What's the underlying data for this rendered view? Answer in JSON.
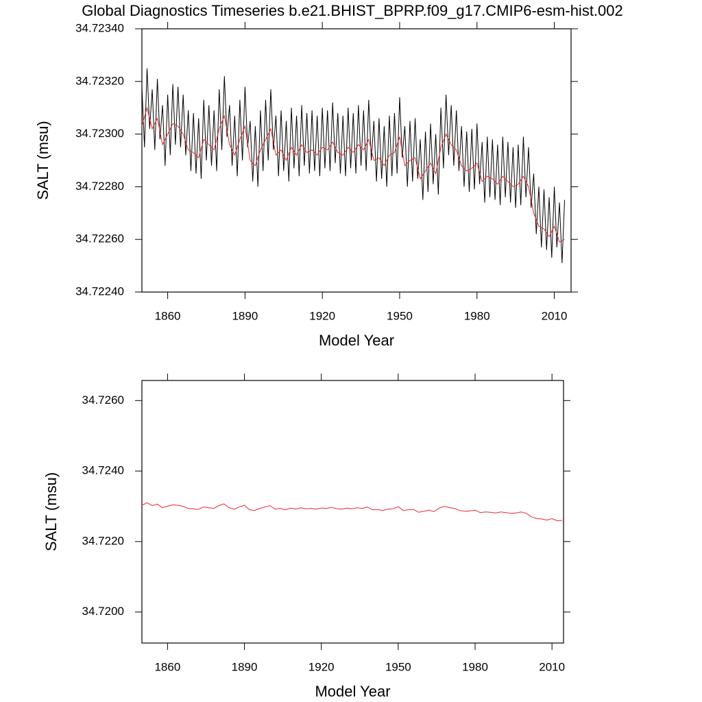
{
  "chart_data": [
    {
      "type": "line",
      "title": "Global Diagnostics Timeseries b.e21.BHIST_BPRP.f09_g17.CMIP6-esm-hist.002",
      "ylabel": "SALT (msu)",
      "xlabel": "Model Year",
      "xlim": [
        1850,
        2016.5
      ],
      "xticks": [
        1860,
        1890,
        1920,
        1950,
        1980,
        2010
      ],
      "ylim": [
        34.7224,
        34.7234
      ],
      "yticks": [
        {
          "value": 34.7224,
          "label": "34.72240"
        },
        {
          "value": 34.7226,
          "label": "34.72260"
        },
        {
          "value": 34.7228,
          "label": "34.72280"
        },
        {
          "value": 34.723,
          "label": "34.72300"
        },
        {
          "value": 34.7232,
          "label": "34.72320"
        },
        {
          "value": 34.7234,
          "label": "34.72340"
        }
      ],
      "series": [
        {
          "color": "#000000",
          "x": [
            1850,
            1851,
            1852,
            1853,
            1854,
            1855,
            1856,
            1857,
            1858,
            1859,
            1860,
            1861,
            1862,
            1863,
            1864,
            1865,
            1866,
            1867,
            1868,
            1869,
            1870,
            1871,
            1872,
            1873,
            1874,
            1875,
            1876,
            1877,
            1878,
            1879,
            1880,
            1881,
            1882,
            1883,
            1884,
            1885,
            1886,
            1887,
            1888,
            1889,
            1890,
            1891,
            1892,
            1893,
            1894,
            1895,
            1896,
            1897,
            1898,
            1899,
            1900,
            1901,
            1902,
            1903,
            1904,
            1905,
            1906,
            1907,
            1908,
            1909,
            1910,
            1911,
            1912,
            1913,
            1914,
            1915,
            1916,
            1917,
            1918,
            1919,
            1920,
            1921,
            1922,
            1923,
            1924,
            1925,
            1926,
            1927,
            1928,
            1929,
            1930,
            1931,
            1932,
            1933,
            1934,
            1935,
            1936,
            1937,
            1938,
            1939,
            1940,
            1941,
            1942,
            1943,
            1944,
            1945,
            1946,
            1947,
            1948,
            1949,
            1950,
            1951,
            1952,
            1953,
            1954,
            1955,
            1956,
            1957,
            1958,
            1959,
            1960,
            1961,
            1962,
            1963,
            1964,
            1965,
            1966,
            1967,
            1968,
            1969,
            1970,
            1971,
            1972,
            1973,
            1974,
            1975,
            1976,
            1977,
            1978,
            1979,
            1980,
            1981,
            1982,
            1983,
            1984,
            1985,
            1986,
            1987,
            1988,
            1989,
            1990,
            1991,
            1992,
            1993,
            1994,
            1995,
            1996,
            1997,
            1998,
            1999,
            2000,
            2001,
            2002,
            2003,
            2004,
            2005,
            2006,
            2007,
            2008,
            2009,
            2010,
            2011,
            2012,
            2013,
            2014
          ],
          "values": [
            34.72318,
            34.72295,
            34.72325,
            34.72302,
            34.72317,
            34.72294,
            34.72321,
            34.72298,
            34.72311,
            34.72288,
            34.72315,
            34.72292,
            34.72319,
            34.72296,
            34.72318,
            34.72295,
            34.72315,
            34.72292,
            34.72309,
            34.72286,
            34.72308,
            34.72285,
            34.72306,
            34.72283,
            34.72313,
            34.7229,
            34.72311,
            34.72288,
            34.72309,
            34.72286,
            34.72317,
            34.72294,
            34.72322,
            34.72299,
            34.72311,
            34.72288,
            34.72307,
            34.72284,
            34.72313,
            34.7229,
            34.72318,
            34.72295,
            34.72305,
            34.72282,
            34.72303,
            34.7228,
            34.72309,
            34.72286,
            34.72313,
            34.7229,
            34.72317,
            34.72294,
            34.72307,
            34.72284,
            34.72309,
            34.72286,
            34.72305,
            34.72282,
            34.7231,
            34.72287,
            34.72307,
            34.72284,
            34.72311,
            34.72288,
            34.72308,
            34.72285,
            34.72309,
            34.72286,
            34.72307,
            34.72284,
            34.7231,
            34.72287,
            34.72309,
            34.72286,
            34.72312,
            34.72289,
            34.72308,
            34.72285,
            34.72307,
            34.72284,
            34.7231,
            34.72287,
            34.72308,
            34.72285,
            34.72311,
            34.72288,
            34.72309,
            34.72286,
            34.72313,
            34.7229,
            34.72305,
            34.72282,
            34.72306,
            34.72283,
            34.72303,
            34.7228,
            34.72307,
            34.72284,
            34.72308,
            34.72285,
            34.72314,
            34.72291,
            34.72303,
            34.7228,
            34.72305,
            34.72282,
            34.72306,
            34.72283,
            34.72298,
            34.72275,
            34.72301,
            34.72278,
            34.72304,
            34.72281,
            34.723,
            34.72277,
            34.7231,
            34.72287,
            34.72315,
            34.72292,
            34.72311,
            34.72288,
            34.72309,
            34.72286,
            34.72303,
            34.7228,
            34.72301,
            34.72278,
            34.72302,
            34.72279,
            34.72304,
            34.72281,
            34.72297,
            34.72274,
            34.72299,
            34.72276,
            34.72298,
            34.72275,
            34.72296,
            34.72273,
            34.72299,
            34.72276,
            34.72297,
            34.72274,
            34.72295,
            34.72272,
            34.72296,
            34.72273,
            34.72299,
            34.72276,
            34.72295,
            34.72272,
            34.72285,
            34.72262,
            34.7228,
            34.72257,
            34.72279,
            34.72256,
            34.72276,
            34.72253,
            34.7228,
            34.72257,
            34.72274,
            34.72251,
            34.72275
          ]
        },
        {
          "color": "#e8262b",
          "x": [
            1850,
            1852,
            1854,
            1856,
            1858,
            1860,
            1862,
            1864,
            1866,
            1868,
            1870,
            1872,
            1874,
            1876,
            1878,
            1880,
            1882,
            1884,
            1886,
            1888,
            1890,
            1892,
            1894,
            1896,
            1898,
            1900,
            1902,
            1904,
            1906,
            1908,
            1910,
            1912,
            1914,
            1916,
            1918,
            1920,
            1922,
            1924,
            1926,
            1928,
            1930,
            1932,
            1934,
            1936,
            1938,
            1940,
            1942,
            1944,
            1946,
            1948,
            1950,
            1952,
            1954,
            1956,
            1958,
            1960,
            1962,
            1964,
            1966,
            1968,
            1970,
            1972,
            1974,
            1976,
            1978,
            1980,
            1982,
            1984,
            1986,
            1988,
            1990,
            1992,
            1994,
            1996,
            1998,
            2000,
            2002,
            2004,
            2006,
            2008,
            2010,
            2012,
            2014
          ],
          "values": [
            34.72303,
            34.7231,
            34.72302,
            34.72306,
            34.72296,
            34.723,
            34.72304,
            34.72303,
            34.723,
            34.72294,
            34.72293,
            34.72291,
            34.72298,
            34.72296,
            34.72294,
            34.72302,
            34.72307,
            34.72296,
            34.72292,
            34.72298,
            34.72303,
            34.7229,
            34.72288,
            34.72294,
            34.72298,
            34.72302,
            34.72292,
            34.72294,
            34.7229,
            34.72295,
            34.72292,
            34.72296,
            34.72293,
            34.72294,
            34.72292,
            34.72295,
            34.72294,
            34.72297,
            34.72293,
            34.72292,
            34.72295,
            34.72293,
            34.72296,
            34.72294,
            34.72298,
            34.7229,
            34.72291,
            34.72288,
            34.72292,
            34.72293,
            34.72299,
            34.72288,
            34.7229,
            34.72291,
            34.72283,
            34.72286,
            34.72289,
            34.72285,
            34.72295,
            34.723,
            34.72296,
            34.72294,
            34.72288,
            34.72286,
            34.72287,
            34.72289,
            34.72282,
            34.72284,
            34.72283,
            34.72281,
            34.72284,
            34.72282,
            34.7228,
            34.72281,
            34.72284,
            34.7228,
            34.7227,
            34.72265,
            34.72264,
            34.72261,
            34.72265,
            34.72259,
            34.7226
          ]
        }
      ]
    },
    {
      "type": "line",
      "ylabel": "SALT (msu)",
      "xlabel": "Model Year",
      "xlim": [
        1850,
        2014.5
      ],
      "xticks": [
        1860,
        1890,
        1920,
        1950,
        1980,
        2010
      ],
      "ylim": [
        34.71912,
        34.72657
      ],
      "yticks": [
        {
          "value": 34.72,
          "label": "34.7200"
        },
        {
          "value": 34.722,
          "label": "34.7220"
        },
        {
          "value": 34.724,
          "label": "34.7240"
        },
        {
          "value": 34.726,
          "label": "34.7260"
        }
      ],
      "series": [
        {
          "color": "#e8262b",
          "x": [
            1850,
            1852,
            1854,
            1856,
            1858,
            1860,
            1862,
            1864,
            1866,
            1868,
            1870,
            1872,
            1874,
            1876,
            1878,
            1880,
            1882,
            1884,
            1886,
            1888,
            1890,
            1892,
            1894,
            1896,
            1898,
            1900,
            1902,
            1904,
            1906,
            1908,
            1910,
            1912,
            1914,
            1916,
            1918,
            1920,
            1922,
            1924,
            1926,
            1928,
            1930,
            1932,
            1934,
            1936,
            1938,
            1940,
            1942,
            1944,
            1946,
            1948,
            1950,
            1952,
            1954,
            1956,
            1958,
            1960,
            1962,
            1964,
            1966,
            1968,
            1970,
            1972,
            1974,
            1976,
            1978,
            1980,
            1982,
            1984,
            1986,
            1988,
            1990,
            1992,
            1994,
            1996,
            1998,
            2000,
            2002,
            2004,
            2006,
            2008,
            2010,
            2012,
            2014
          ],
          "values": [
            34.72303,
            34.7231,
            34.72302,
            34.72306,
            34.72296,
            34.723,
            34.72304,
            34.72303,
            34.723,
            34.72294,
            34.72293,
            34.72291,
            34.72298,
            34.72296,
            34.72294,
            34.72302,
            34.72307,
            34.72296,
            34.72292,
            34.72298,
            34.72303,
            34.7229,
            34.72288,
            34.72294,
            34.72298,
            34.72302,
            34.72292,
            34.72294,
            34.7229,
            34.72295,
            34.72292,
            34.72296,
            34.72293,
            34.72294,
            34.72292,
            34.72295,
            34.72294,
            34.72297,
            34.72293,
            34.72292,
            34.72295,
            34.72293,
            34.72296,
            34.72294,
            34.72298,
            34.7229,
            34.72291,
            34.72288,
            34.72292,
            34.72293,
            34.72299,
            34.72288,
            34.7229,
            34.72291,
            34.72283,
            34.72286,
            34.72289,
            34.72285,
            34.72295,
            34.723,
            34.72296,
            34.72294,
            34.72288,
            34.72286,
            34.72287,
            34.72289,
            34.72282,
            34.72284,
            34.72283,
            34.72281,
            34.72284,
            34.72282,
            34.7228,
            34.72281,
            34.72284,
            34.7228,
            34.7227,
            34.72265,
            34.72264,
            34.72261,
            34.72265,
            34.72259,
            34.7226
          ]
        }
      ]
    }
  ]
}
